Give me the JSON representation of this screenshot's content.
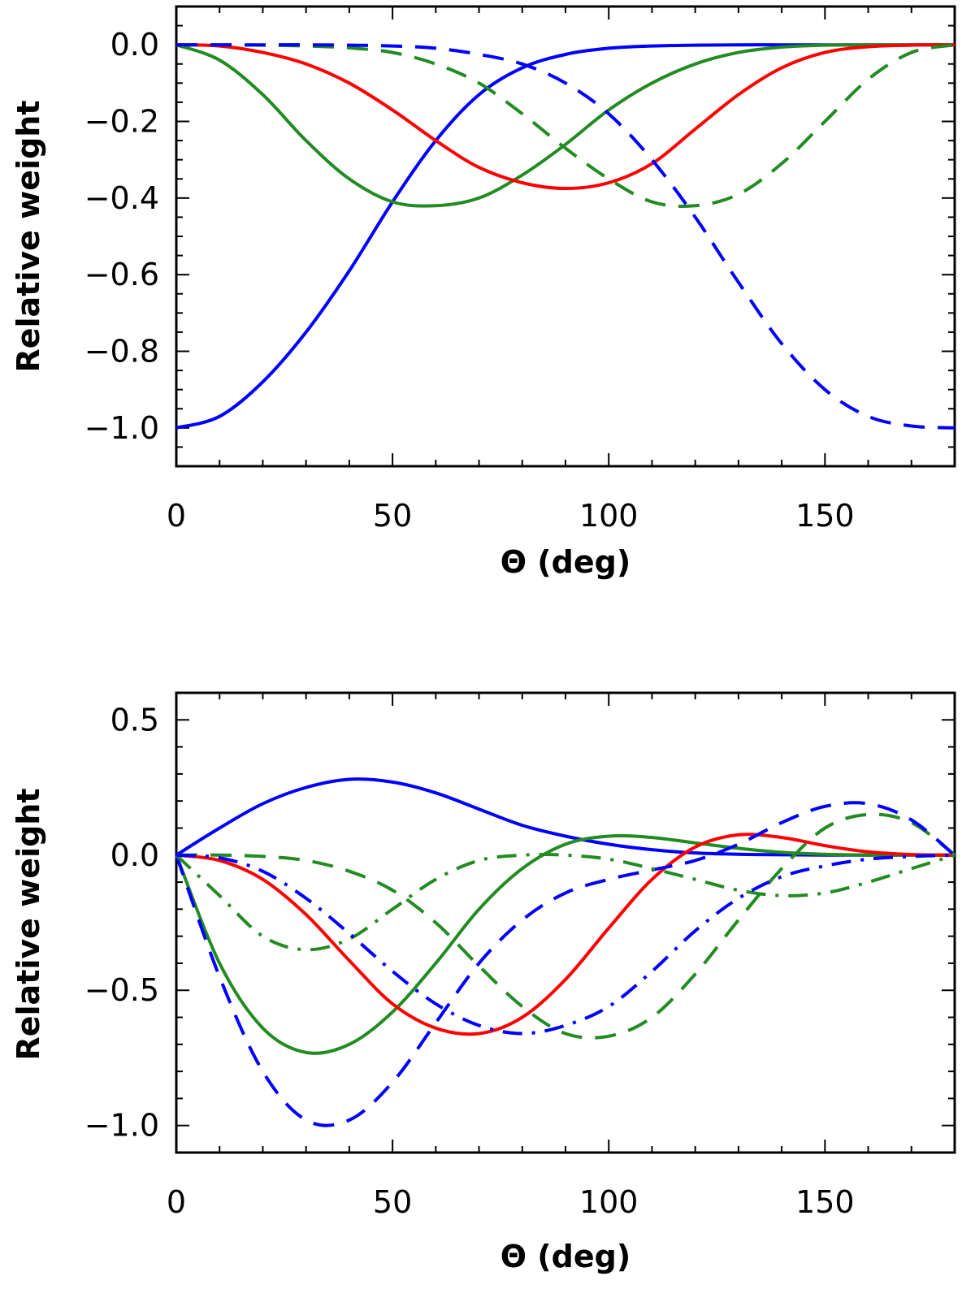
{
  "chart_data": [
    {
      "type": "line",
      "xlabel": "Θ (deg)",
      "ylabel": "Relative weight",
      "xlim": [
        0,
        180
      ],
      "ylim": [
        -1.1,
        0.1
      ],
      "xticks": [
        0,
        50,
        100,
        150
      ],
      "yticks": [
        0.0,
        -0.2,
        -0.4,
        -0.6,
        -0.8,
        -1.0
      ],
      "ytick_labels": [
        "0.0",
        "−0.2",
        "−0.4",
        "−0.6",
        "−0.8",
        "−1.0"
      ],
      "series": [
        {
          "color": "#0000ff",
          "dash": "solid",
          "x": [
            0,
            10,
            20,
            30,
            40,
            50,
            60,
            70,
            80,
            90,
            100,
            110,
            120,
            130,
            140,
            150,
            160,
            170,
            180
          ],
          "y": [
            -1.0,
            -0.97,
            -0.88,
            -0.75,
            -0.59,
            -0.41,
            -0.25,
            -0.13,
            -0.06,
            -0.025,
            -0.009,
            -0.003,
            -0.001,
            0,
            0,
            0,
            0,
            0,
            0
          ]
        },
        {
          "color": "#228b22",
          "dash": "solid",
          "x": [
            0,
            10,
            20,
            30,
            40,
            50,
            60,
            70,
            80,
            90,
            100,
            110,
            120,
            130,
            140,
            150,
            160,
            170,
            180
          ],
          "y": [
            0,
            -0.04,
            -0.13,
            -0.25,
            -0.35,
            -0.41,
            -0.42,
            -0.4,
            -0.34,
            -0.26,
            -0.17,
            -0.1,
            -0.05,
            -0.02,
            -0.006,
            -0.001,
            0,
            0,
            0
          ]
        },
        {
          "color": "#ff0000",
          "dash": "solid",
          "x": [
            0,
            10,
            20,
            30,
            40,
            50,
            60,
            70,
            80,
            90,
            100,
            110,
            120,
            130,
            140,
            150,
            160,
            170,
            180
          ],
          "y": [
            0,
            -0.003,
            -0.02,
            -0.05,
            -0.1,
            -0.17,
            -0.25,
            -0.32,
            -0.36,
            -0.375,
            -0.36,
            -0.31,
            -0.22,
            -0.13,
            -0.06,
            -0.02,
            -0.005,
            -0.001,
            0
          ]
        },
        {
          "color": "#228b22",
          "dash": "dashed",
          "x": [
            0,
            10,
            20,
            30,
            40,
            50,
            60,
            70,
            80,
            90,
            100,
            110,
            120,
            130,
            140,
            150,
            160,
            170,
            180
          ],
          "y": [
            0,
            0,
            -0.001,
            -0.003,
            -0.008,
            -0.02,
            -0.05,
            -0.1,
            -0.18,
            -0.27,
            -0.35,
            -0.41,
            -0.42,
            -0.39,
            -0.31,
            -0.2,
            -0.09,
            -0.02,
            0
          ]
        },
        {
          "color": "#0000ff",
          "dash": "dashed",
          "x": [
            0,
            10,
            20,
            30,
            40,
            50,
            60,
            70,
            80,
            90,
            100,
            110,
            120,
            130,
            140,
            150,
            160,
            170,
            180
          ],
          "y": [
            0,
            0,
            0,
            0,
            -0.001,
            -0.003,
            -0.009,
            -0.025,
            -0.05,
            -0.1,
            -0.18,
            -0.3,
            -0.45,
            -0.62,
            -0.78,
            -0.9,
            -0.97,
            -0.995,
            -1.0
          ]
        }
      ]
    },
    {
      "type": "line",
      "xlabel": "Θ (deg)",
      "ylabel": "Relative weight",
      "xlim": [
        0,
        180
      ],
      "ylim": [
        -1.1,
        0.6
      ],
      "xticks": [
        0,
        50,
        100,
        150
      ],
      "yticks": [
        0.5,
        0.0,
        -0.5,
        -1.0
      ],
      "ytick_labels": [
        "0.5",
        "0.0",
        "−0.5",
        "−1.0"
      ],
      "series": [
        {
          "color": "#0000ff",
          "dash": "solid",
          "x": [
            0,
            10,
            20,
            30,
            40,
            50,
            60,
            70,
            80,
            90,
            100,
            110,
            120,
            130,
            140,
            150,
            160,
            170,
            180
          ],
          "y": [
            0,
            0.1,
            0.19,
            0.25,
            0.28,
            0.27,
            0.23,
            0.17,
            0.11,
            0.07,
            0.04,
            0.02,
            0.008,
            0.003,
            0.001,
            0,
            0,
            0,
            0
          ]
        },
        {
          "color": "#228b22",
          "dash": "solid",
          "x": [
            0,
            10,
            20,
            30,
            40,
            50,
            60,
            70,
            80,
            90,
            100,
            110,
            120,
            130,
            140,
            150,
            160,
            170,
            180
          ],
          "y": [
            0,
            -0.4,
            -0.64,
            -0.73,
            -0.7,
            -0.58,
            -0.4,
            -0.2,
            -0.05,
            0.04,
            0.07,
            0.065,
            0.045,
            0.025,
            0.01,
            0.003,
            0,
            0,
            0
          ]
        },
        {
          "color": "#ff0000",
          "dash": "solid",
          "x": [
            0,
            10,
            20,
            30,
            40,
            50,
            60,
            70,
            80,
            90,
            100,
            110,
            120,
            130,
            140,
            150,
            160,
            170,
            180
          ],
          "y": [
            0,
            -0.02,
            -0.09,
            -0.22,
            -0.39,
            -0.55,
            -0.64,
            -0.66,
            -0.6,
            -0.46,
            -0.27,
            -0.09,
            0.03,
            0.075,
            0.065,
            0.035,
            0.012,
            0.002,
            0
          ]
        },
        {
          "color": "#228b22",
          "dash": "dashed",
          "x": [
            0,
            10,
            20,
            30,
            40,
            50,
            60,
            70,
            80,
            90,
            100,
            110,
            120,
            130,
            140,
            150,
            160,
            170,
            180
          ],
          "y": [
            0,
            0,
            -0.005,
            -0.02,
            -0.06,
            -0.13,
            -0.25,
            -0.41,
            -0.56,
            -0.66,
            -0.67,
            -0.6,
            -0.44,
            -0.24,
            -0.05,
            0.1,
            0.15,
            0.12,
            0
          ]
        },
        {
          "color": "#0000ff",
          "dash": "dashed",
          "x": [
            0,
            10,
            20,
            30,
            40,
            50,
            60,
            70,
            80,
            90,
            100,
            110,
            120,
            130,
            140,
            150,
            160,
            170,
            180
          ],
          "y": [
            0,
            -0.45,
            -0.8,
            -0.98,
            -0.98,
            -0.84,
            -0.62,
            -0.4,
            -0.24,
            -0.14,
            -0.09,
            -0.055,
            -0.02,
            0.04,
            0.12,
            0.18,
            0.19,
            0.13,
            0
          ]
        },
        {
          "color": "#228b22",
          "dash": "dashdot",
          "x": [
            0,
            10,
            20,
            30,
            40,
            50,
            60,
            70,
            80,
            90,
            100,
            110,
            120,
            130,
            140,
            150,
            160,
            170,
            180
          ],
          "y": [
            0,
            -0.15,
            -0.3,
            -0.35,
            -0.31,
            -0.2,
            -0.09,
            -0.02,
            0,
            0,
            -0.015,
            -0.05,
            -0.09,
            -0.13,
            -0.15,
            -0.14,
            -0.1,
            -0.05,
            0
          ]
        },
        {
          "color": "#0000ff",
          "dash": "dashdot",
          "x": [
            0,
            10,
            20,
            30,
            40,
            50,
            60,
            70,
            80,
            90,
            100,
            110,
            120,
            130,
            140,
            150,
            160,
            170,
            180
          ],
          "y": [
            0,
            -0.01,
            -0.06,
            -0.16,
            -0.29,
            -0.43,
            -0.55,
            -0.63,
            -0.66,
            -0.63,
            -0.56,
            -0.43,
            -0.28,
            -0.16,
            -0.08,
            -0.04,
            -0.015,
            -0.005,
            0
          ]
        }
      ]
    }
  ]
}
